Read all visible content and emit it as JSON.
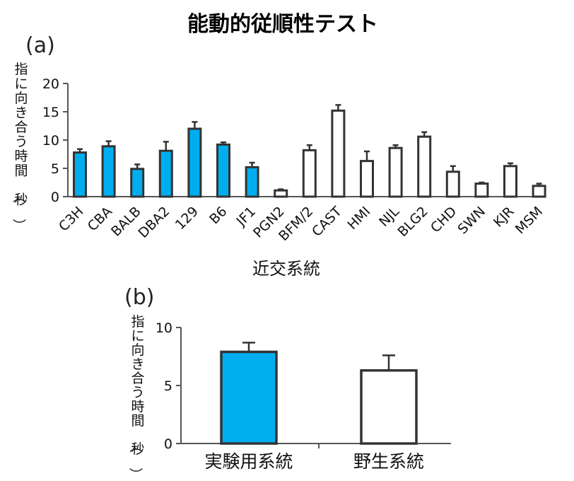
{
  "title": "能動的従順性テスト",
  "colors": {
    "lab": "#00aeef",
    "wild": "#ffffff",
    "stroke": "#333333"
  },
  "chart_data": [
    {
      "panel": "(a)",
      "type": "bar",
      "categories": [
        "C3H",
        "CBA",
        "BALB",
        "DBA2",
        "129",
        "B6",
        "JF1",
        "PGN2",
        "BFM/2",
        "CAST",
        "HMI",
        "NJL",
        "BLG2",
        "CHD",
        "SWN",
        "KJR",
        "MSM"
      ],
      "values": [
        7.8,
        8.9,
        4.9,
        8.1,
        12.0,
        9.2,
        5.2,
        1.1,
        8.2,
        15.2,
        6.3,
        8.6,
        10.6,
        4.4,
        2.3,
        5.4,
        1.9
      ],
      "errors": [
        0.6,
        0.9,
        0.8,
        1.6,
        1.2,
        0.4,
        0.8,
        0.2,
        0.9,
        1.0,
        1.7,
        0.5,
        0.8,
        1.0,
        0.2,
        0.5,
        0.4
      ],
      "fill": [
        "lab",
        "lab",
        "lab",
        "lab",
        "lab",
        "lab",
        "lab",
        "wild",
        "wild",
        "wild",
        "wild",
        "wild",
        "wild",
        "wild",
        "wild",
        "wild",
        "wild"
      ],
      "ylim": [
        0,
        20
      ],
      "yticks": [
        0,
        5,
        10,
        15,
        20
      ],
      "ylabel": "指に向き合う時間（秒）",
      "xlabel": "近交系統"
    },
    {
      "panel": "(b)",
      "type": "bar",
      "categories": [
        "実験用系統",
        "野生系統"
      ],
      "values": [
        7.9,
        6.3
      ],
      "errors": [
        0.8,
        1.3
      ],
      "fill": [
        "lab",
        "wild"
      ],
      "ylim": [
        0,
        10
      ],
      "yticks": [
        0,
        5,
        10
      ],
      "ylabel": "指に向き合う時間（秒）",
      "xlabel": ""
    }
  ]
}
